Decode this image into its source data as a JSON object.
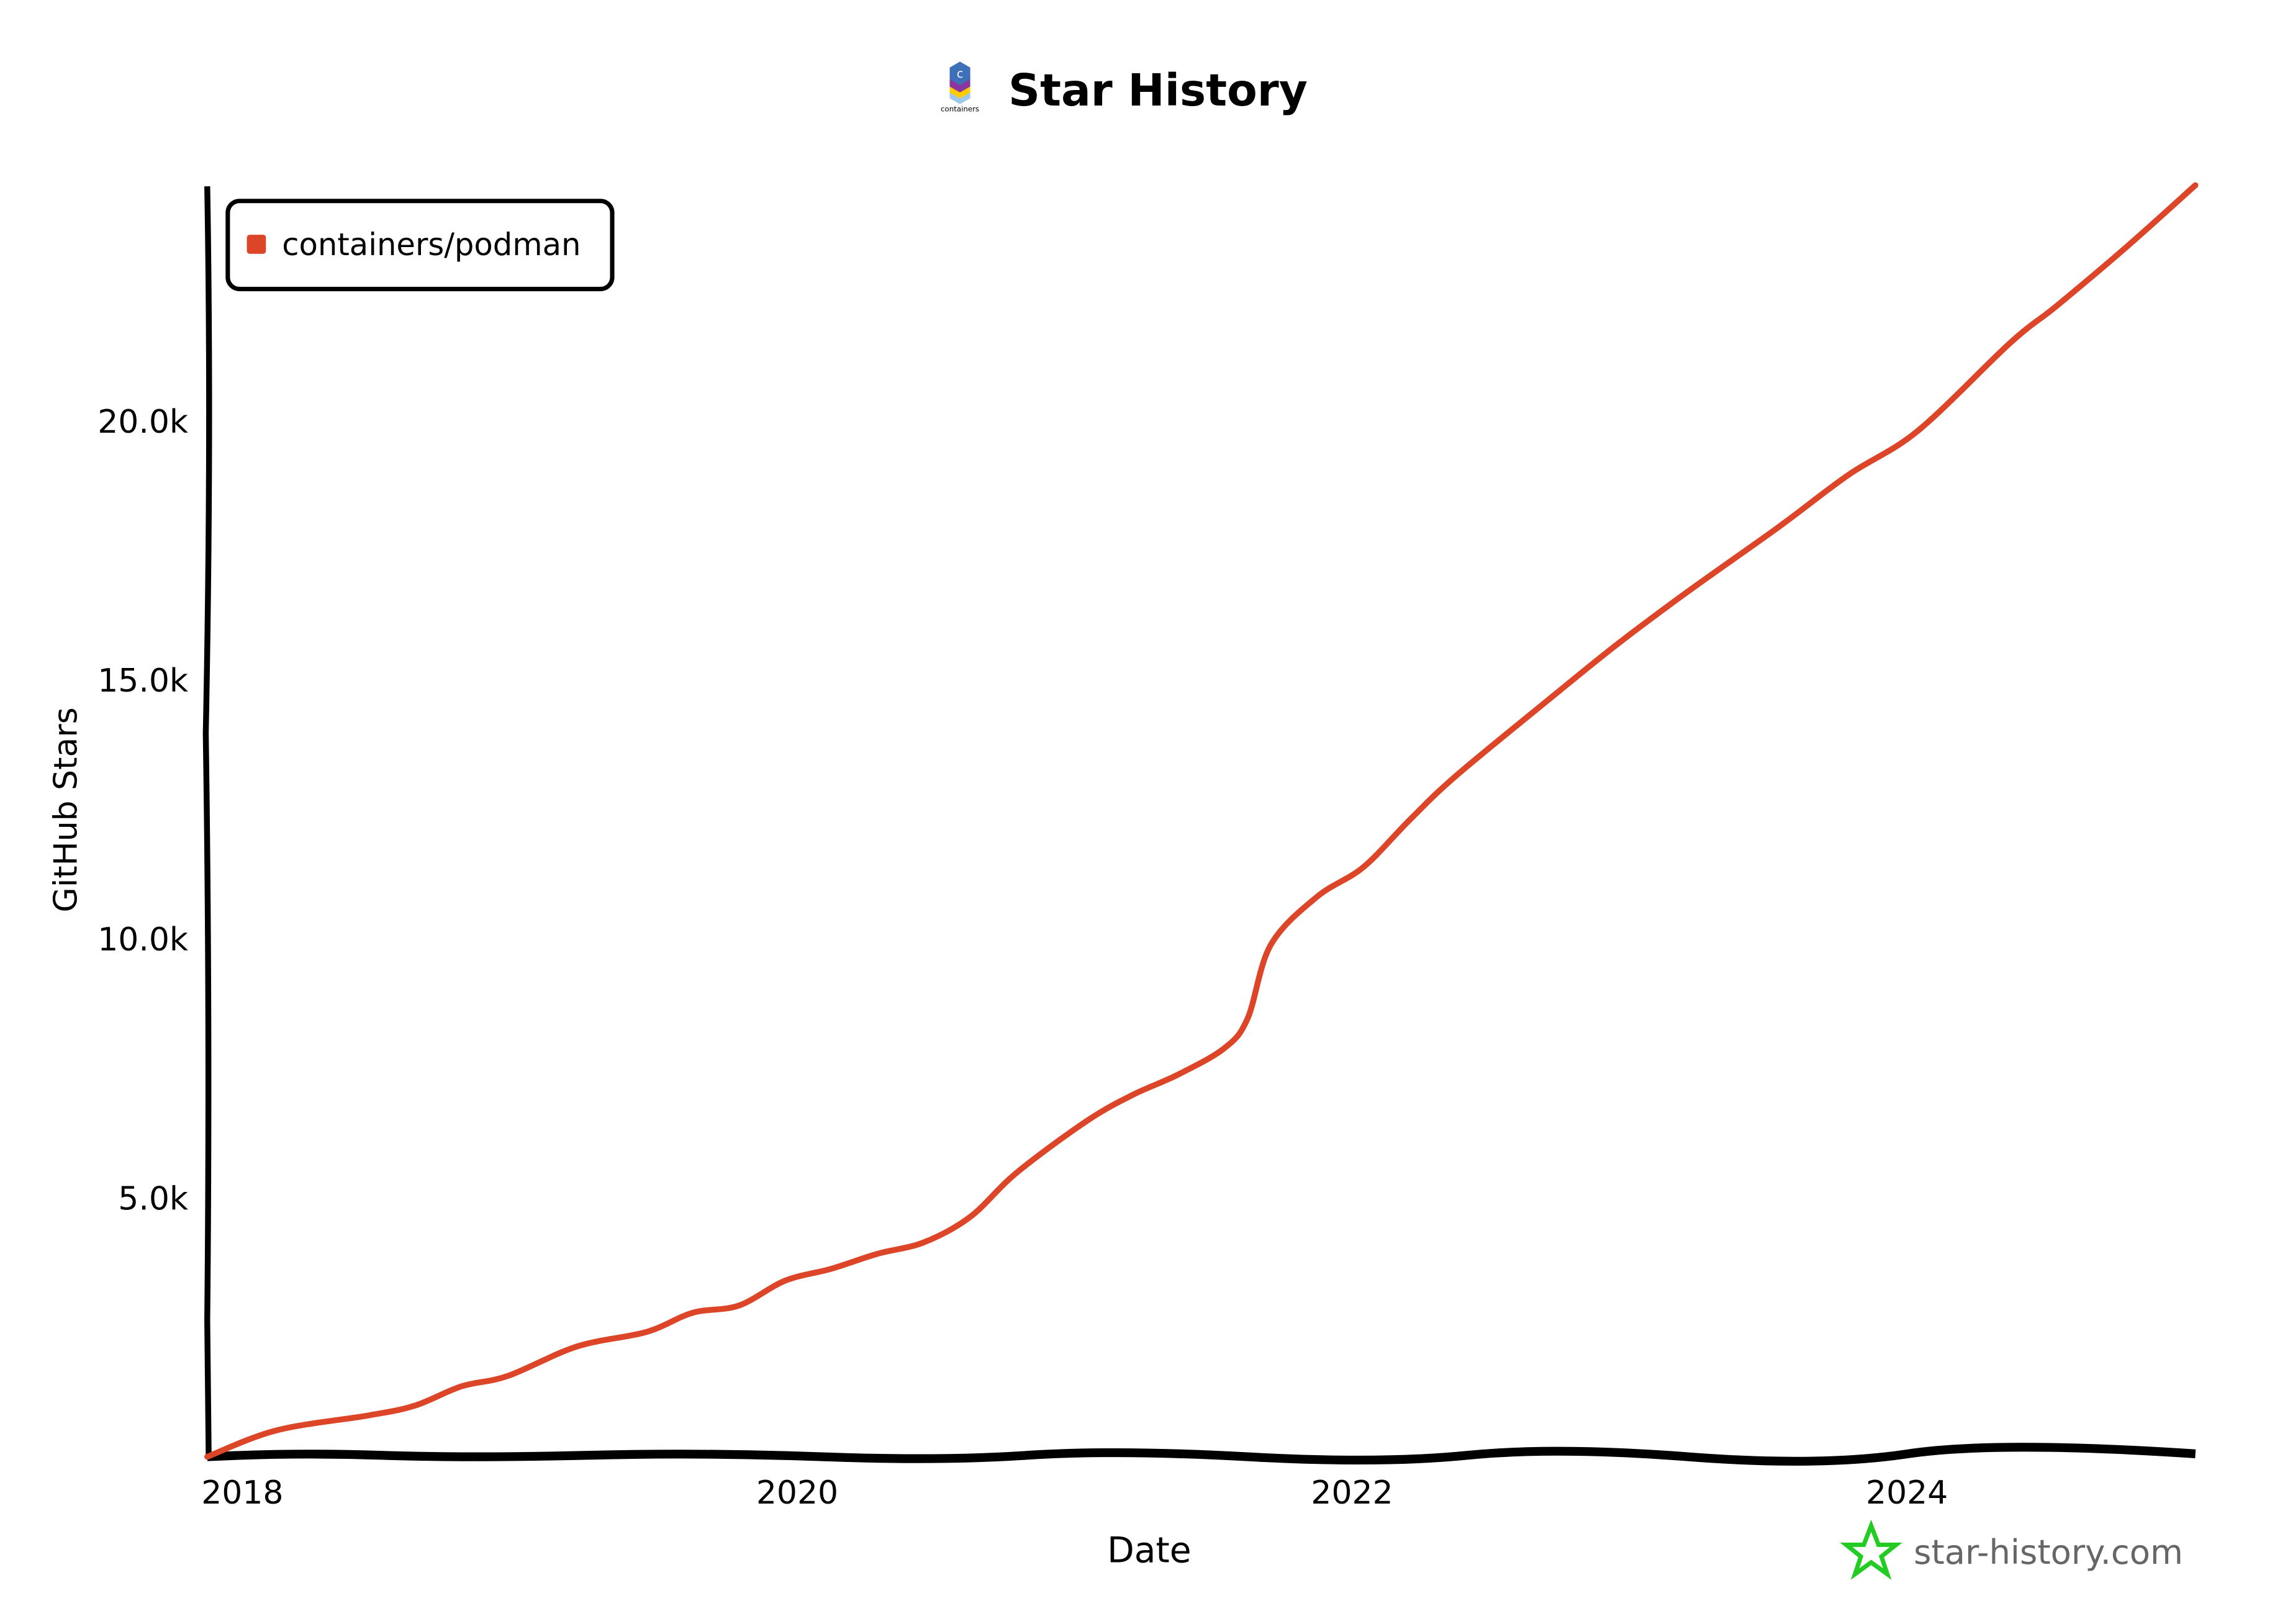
{
  "chart_data": {
    "type": "line",
    "title": "Star History",
    "logo_text": "containers",
    "xlabel": "Date",
    "ylabel": "GitHub Stars",
    "x_ticks": [
      "2018",
      "2020",
      "2022",
      "2024"
    ],
    "y_ticks": [
      {
        "value": 5000,
        "label": "5.0k"
      },
      {
        "value": 10000,
        "label": "10.0k"
      },
      {
        "value": 15000,
        "label": "15.0k"
      },
      {
        "value": 20000,
        "label": "20.0k"
      }
    ],
    "xlim": [
      "2017-11",
      "2025-01"
    ],
    "ylim": [
      0,
      24500
    ],
    "grid": false,
    "legend_position": "top-left",
    "series": [
      {
        "name": "containers/podman",
        "color": "#dd4528",
        "x": [
          "2017-11",
          "2018-02",
          "2018-06",
          "2018-08",
          "2018-10",
          "2018-12",
          "2019-03",
          "2019-06",
          "2019-08",
          "2019-10",
          "2019-12",
          "2020-02",
          "2020-04",
          "2020-06",
          "2020-08",
          "2020-10",
          "2021-01",
          "2021-03",
          "2021-05",
          "2021-07",
          "2021-08",
          "2021-09",
          "2021-11",
          "2022-01",
          "2022-03",
          "2022-05",
          "2022-09",
          "2022-12",
          "2023-03",
          "2023-07",
          "2023-10",
          "2024-01",
          "2024-05",
          "2024-07",
          "2024-10",
          "2025-01"
        ],
        "y": [
          0,
          510,
          800,
          990,
          1360,
          1560,
          2130,
          2410,
          2780,
          2920,
          3400,
          3630,
          3920,
          4140,
          4630,
          5480,
          6470,
          6980,
          7380,
          7890,
          8460,
          9880,
          10810,
          11380,
          12290,
          13140,
          14610,
          15690,
          16690,
          17960,
          18960,
          19810,
          21510,
          22220,
          23350,
          24550
        ]
      }
    ],
    "watermark": "star-history.com",
    "colors": {
      "watermark_star": "#22cc22",
      "watermark_text": "#666666"
    }
  }
}
